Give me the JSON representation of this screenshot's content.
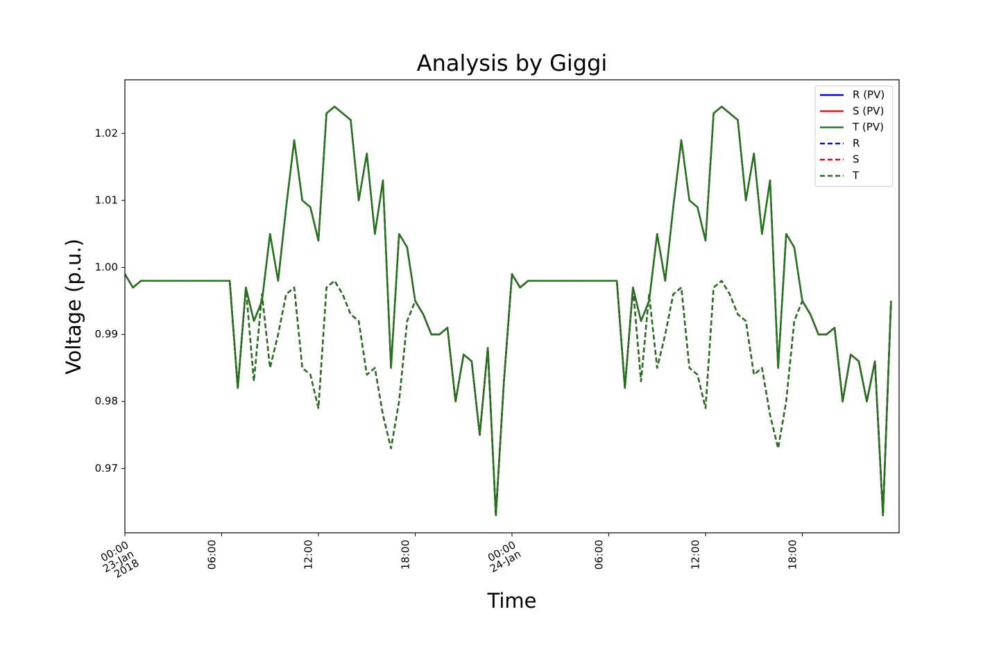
{
  "chart_data": {
    "type": "line",
    "title": "Analysis by Giggi",
    "x_label": "Time",
    "y_label": "Voltage (p.u.)",
    "x": [
      "2018-01-23T00:00",
      "2018-01-23T00:30",
      "2018-01-23T01:00",
      "2018-01-23T01:30",
      "2018-01-23T02:00",
      "2018-01-23T02:30",
      "2018-01-23T03:00",
      "2018-01-23T03:30",
      "2018-01-23T04:00",
      "2018-01-23T04:30",
      "2018-01-23T05:00",
      "2018-01-23T05:30",
      "2018-01-23T06:00",
      "2018-01-23T06:30",
      "2018-01-23T07:00",
      "2018-01-23T07:30",
      "2018-01-23T08:00",
      "2018-01-23T08:30",
      "2018-01-23T09:00",
      "2018-01-23T09:30",
      "2018-01-23T10:00",
      "2018-01-23T10:30",
      "2018-01-23T11:00",
      "2018-01-23T11:30",
      "2018-01-23T12:00",
      "2018-01-23T12:30",
      "2018-01-23T13:00",
      "2018-01-23T13:30",
      "2018-01-23T14:00",
      "2018-01-23T14:30",
      "2018-01-23T15:00",
      "2018-01-23T15:30",
      "2018-01-23T16:00",
      "2018-01-23T16:30",
      "2018-01-23T17:00",
      "2018-01-23T17:30",
      "2018-01-23T18:00",
      "2018-01-23T18:30",
      "2018-01-23T19:00",
      "2018-01-23T19:30",
      "2018-01-23T20:00",
      "2018-01-23T20:30",
      "2018-01-23T21:00",
      "2018-01-23T21:30",
      "2018-01-23T22:00",
      "2018-01-23T22:30",
      "2018-01-23T23:00",
      "2018-01-23T23:30",
      "2018-01-24T00:00",
      "2018-01-24T00:30",
      "2018-01-24T01:00",
      "2018-01-24T01:30",
      "2018-01-24T02:00",
      "2018-01-24T02:30",
      "2018-01-24T03:00",
      "2018-01-24T03:30",
      "2018-01-24T04:00",
      "2018-01-24T04:30",
      "2018-01-24T05:00",
      "2018-01-24T05:30",
      "2018-01-24T06:00",
      "2018-01-24T06:30",
      "2018-01-24T07:00",
      "2018-01-24T07:30",
      "2018-01-24T08:00",
      "2018-01-24T08:30",
      "2018-01-24T09:00",
      "2018-01-24T09:30",
      "2018-01-24T10:00",
      "2018-01-24T10:30",
      "2018-01-24T11:00",
      "2018-01-24T11:30",
      "2018-01-24T12:00",
      "2018-01-24T12:30",
      "2018-01-24T13:00",
      "2018-01-24T13:30",
      "2018-01-24T14:00",
      "2018-01-24T14:30",
      "2018-01-24T15:00",
      "2018-01-24T15:30",
      "2018-01-24T16:00",
      "2018-01-24T16:30",
      "2018-01-24T17:00",
      "2018-01-24T17:30",
      "2018-01-24T18:00",
      "2018-01-24T18:30",
      "2018-01-24T19:00",
      "2018-01-24T19:30",
      "2018-01-24T20:00",
      "2018-01-24T20:30",
      "2018-01-24T21:00",
      "2018-01-24T21:30",
      "2018-01-24T22:00",
      "2018-01-24T22:30",
      "2018-01-24T23:00",
      "2018-01-24T23:30"
    ],
    "series": [
      {
        "name": "R (PV)",
        "color": "#0000ff",
        "linestyle": "solid",
        "values": [
          0.999,
          0.997,
          0.998,
          0.998,
          0.998,
          0.998,
          0.998,
          0.998,
          0.998,
          0.998,
          0.998,
          0.998,
          0.998,
          0.998,
          0.982,
          0.997,
          0.992,
          0.995,
          1.005,
          0.998,
          1.009,
          1.019,
          1.01,
          1.009,
          1.004,
          1.023,
          1.024,
          1.023,
          1.022,
          1.01,
          1.017,
          1.005,
          1.013,
          0.985,
          1.005,
          1.003,
          0.995,
          0.993,
          0.99,
          0.99,
          0.991,
          0.98,
          0.987,
          0.986,
          0.975,
          0.988,
          0.963,
          0.983,
          0.999,
          0.997,
          0.998,
          0.998,
          0.998,
          0.998,
          0.998,
          0.998,
          0.998,
          0.998,
          0.998,
          0.998,
          0.998,
          0.998,
          0.982,
          0.997,
          0.992,
          0.995,
          1.005,
          0.998,
          1.009,
          1.019,
          1.01,
          1.009,
          1.004,
          1.023,
          1.024,
          1.023,
          1.022,
          1.01,
          1.017,
          1.005,
          1.013,
          0.985,
          1.005,
          1.003,
          0.995,
          0.993,
          0.99,
          0.99,
          0.991,
          0.98,
          0.987,
          0.986,
          0.98,
          0.986,
          0.963,
          0.995
        ]
      },
      {
        "name": "S (PV)",
        "color": "#ff0000",
        "linestyle": "solid",
        "values": [
          0.999,
          0.997,
          0.998,
          0.998,
          0.998,
          0.998,
          0.998,
          0.998,
          0.998,
          0.998,
          0.998,
          0.998,
          0.998,
          0.998,
          0.982,
          0.997,
          0.992,
          0.995,
          1.005,
          0.998,
          1.009,
          1.019,
          1.01,
          1.009,
          1.004,
          1.023,
          1.024,
          1.023,
          1.022,
          1.01,
          1.017,
          1.005,
          1.013,
          0.985,
          1.005,
          1.003,
          0.995,
          0.993,
          0.99,
          0.99,
          0.991,
          0.98,
          0.987,
          0.986,
          0.975,
          0.988,
          0.963,
          0.983,
          0.999,
          0.997,
          0.998,
          0.998,
          0.998,
          0.998,
          0.998,
          0.998,
          0.998,
          0.998,
          0.998,
          0.998,
          0.998,
          0.998,
          0.982,
          0.997,
          0.992,
          0.995,
          1.005,
          0.998,
          1.009,
          1.019,
          1.01,
          1.009,
          1.004,
          1.023,
          1.024,
          1.023,
          1.022,
          1.01,
          1.017,
          1.005,
          1.013,
          0.985,
          1.005,
          1.003,
          0.995,
          0.993,
          0.99,
          0.99,
          0.991,
          0.98,
          0.987,
          0.986,
          0.98,
          0.986,
          0.963,
          0.995
        ]
      },
      {
        "name": "T (PV)",
        "color": "#1a7a1a",
        "linestyle": "solid",
        "values": [
          0.999,
          0.997,
          0.998,
          0.998,
          0.998,
          0.998,
          0.998,
          0.998,
          0.998,
          0.998,
          0.998,
          0.998,
          0.998,
          0.998,
          0.982,
          0.997,
          0.992,
          0.995,
          1.005,
          0.998,
          1.009,
          1.019,
          1.01,
          1.009,
          1.004,
          1.023,
          1.024,
          1.023,
          1.022,
          1.01,
          1.017,
          1.005,
          1.013,
          0.985,
          1.005,
          1.003,
          0.995,
          0.993,
          0.99,
          0.99,
          0.991,
          0.98,
          0.987,
          0.986,
          0.975,
          0.988,
          0.963,
          0.983,
          0.999,
          0.997,
          0.998,
          0.998,
          0.998,
          0.998,
          0.998,
          0.998,
          0.998,
          0.998,
          0.998,
          0.998,
          0.998,
          0.998,
          0.982,
          0.997,
          0.992,
          0.995,
          1.005,
          0.998,
          1.009,
          1.019,
          1.01,
          1.009,
          1.004,
          1.023,
          1.024,
          1.023,
          1.022,
          1.01,
          1.017,
          1.005,
          1.013,
          0.985,
          1.005,
          1.003,
          0.995,
          0.993,
          0.99,
          0.99,
          0.991,
          0.98,
          0.987,
          0.986,
          0.98,
          0.986,
          0.963,
          0.995
        ]
      },
      {
        "name": "R",
        "color": "#0000ff",
        "linestyle": "dashed",
        "values": [
          0.999,
          0.997,
          0.998,
          0.998,
          0.998,
          0.998,
          0.998,
          0.998,
          0.998,
          0.998,
          0.998,
          0.998,
          0.998,
          0.998,
          0.982,
          0.997,
          0.983,
          0.996,
          0.985,
          0.99,
          0.996,
          0.997,
          0.985,
          0.984,
          0.979,
          0.997,
          0.998,
          0.996,
          0.993,
          0.992,
          0.984,
          0.985,
          0.978,
          0.973,
          0.98,
          0.992,
          0.995,
          0.993,
          0.99,
          0.99,
          0.991,
          0.98,
          0.987,
          0.986,
          0.975,
          0.988,
          0.963,
          0.983,
          0.999,
          0.997,
          0.998,
          0.998,
          0.998,
          0.998,
          0.998,
          0.998,
          0.998,
          0.998,
          0.998,
          0.998,
          0.998,
          0.998,
          0.982,
          0.997,
          0.983,
          0.996,
          0.985,
          0.99,
          0.996,
          0.997,
          0.985,
          0.984,
          0.979,
          0.997,
          0.998,
          0.996,
          0.993,
          0.992,
          0.984,
          0.985,
          0.978,
          0.973,
          0.98,
          0.992,
          0.995,
          0.993,
          0.99,
          0.99,
          0.991,
          0.98,
          0.987,
          0.986,
          0.98,
          0.986,
          0.963,
          0.995
        ]
      },
      {
        "name": "S",
        "color": "#ff0000",
        "linestyle": "dashed",
        "values": [
          0.999,
          0.997,
          0.998,
          0.998,
          0.998,
          0.998,
          0.998,
          0.998,
          0.998,
          0.998,
          0.998,
          0.998,
          0.998,
          0.998,
          0.982,
          0.997,
          0.983,
          0.996,
          0.985,
          0.99,
          0.996,
          0.997,
          0.985,
          0.984,
          0.979,
          0.997,
          0.998,
          0.996,
          0.993,
          0.992,
          0.984,
          0.985,
          0.978,
          0.973,
          0.98,
          0.992,
          0.995,
          0.993,
          0.99,
          0.99,
          0.991,
          0.98,
          0.987,
          0.986,
          0.975,
          0.988,
          0.963,
          0.983,
          0.999,
          0.997,
          0.998,
          0.998,
          0.998,
          0.998,
          0.998,
          0.998,
          0.998,
          0.998,
          0.998,
          0.998,
          0.998,
          0.998,
          0.982,
          0.997,
          0.983,
          0.996,
          0.985,
          0.99,
          0.996,
          0.997,
          0.985,
          0.984,
          0.979,
          0.997,
          0.998,
          0.996,
          0.993,
          0.992,
          0.984,
          0.985,
          0.978,
          0.973,
          0.98,
          0.992,
          0.995,
          0.993,
          0.99,
          0.99,
          0.991,
          0.98,
          0.987,
          0.986,
          0.98,
          0.986,
          0.963,
          0.995
        ]
      },
      {
        "name": "T",
        "color": "#1a7a1a",
        "linestyle": "dashed",
        "values": [
          0.999,
          0.997,
          0.998,
          0.998,
          0.998,
          0.998,
          0.998,
          0.998,
          0.998,
          0.998,
          0.998,
          0.998,
          0.998,
          0.998,
          0.982,
          0.997,
          0.983,
          0.996,
          0.985,
          0.99,
          0.996,
          0.997,
          0.985,
          0.984,
          0.979,
          0.997,
          0.998,
          0.996,
          0.993,
          0.992,
          0.984,
          0.985,
          0.978,
          0.973,
          0.98,
          0.992,
          0.995,
          0.993,
          0.99,
          0.99,
          0.991,
          0.98,
          0.987,
          0.986,
          0.975,
          0.988,
          0.963,
          0.983,
          0.999,
          0.997,
          0.998,
          0.998,
          0.998,
          0.998,
          0.998,
          0.998,
          0.998,
          0.998,
          0.998,
          0.998,
          0.998,
          0.998,
          0.982,
          0.997,
          0.983,
          0.996,
          0.985,
          0.99,
          0.996,
          0.997,
          0.985,
          0.984,
          0.979,
          0.997,
          0.998,
          0.996,
          0.993,
          0.992,
          0.984,
          0.985,
          0.978,
          0.973,
          0.98,
          0.992,
          0.995,
          0.993,
          0.99,
          0.99,
          0.991,
          0.98,
          0.987,
          0.986,
          0.98,
          0.986,
          0.963,
          0.995
        ]
      }
    ],
    "xlim": [
      "2018-01-23T00:00",
      "2018-01-25T00:00"
    ],
    "xticks": [
      {
        "value": "2018-01-23T00:00",
        "label": "00:00\n23-Jan\n2018"
      },
      {
        "value": "2018-01-23T06:00",
        "label": "06:00"
      },
      {
        "value": "2018-01-23T12:00",
        "label": "12:00"
      },
      {
        "value": "2018-01-23T18:00",
        "label": "18:00"
      },
      {
        "value": "2018-01-24T00:00",
        "label": "00:00\n24-Jan"
      },
      {
        "value": "2018-01-24T06:00",
        "label": "06:00"
      },
      {
        "value": "2018-01-24T12:00",
        "label": "12:00"
      },
      {
        "value": "2018-01-24T18:00",
        "label": "18:00"
      }
    ],
    "ylim": [
      0.9604,
      1.028
    ],
    "yticks": [
      0.97,
      0.98,
      0.99,
      {
        "value": 1,
        "label": "1.00"
      },
      1.01,
      1.02
    ],
    "grid": false,
    "legend": "upper right"
  }
}
